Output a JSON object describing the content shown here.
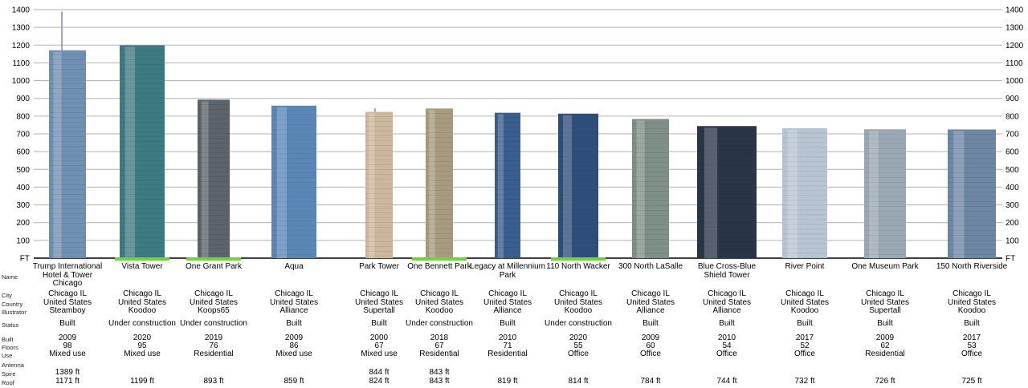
{
  "axis": {
    "ticks": [
      "1400",
      "1300",
      "1200",
      "1100",
      "1000",
      "900",
      "800",
      "700",
      "600",
      "500",
      "400",
      "300",
      "200",
      "100",
      "FT"
    ],
    "max_ft": 1400
  },
  "row_labels": {
    "name": "Name",
    "city": "City",
    "country": "Country",
    "illustrator": "Illustrator",
    "status": "Status",
    "built": "Built",
    "floors": "Floors",
    "use": "Use",
    "antenna": "Antenna",
    "spire": "Spire",
    "roof": "Roof"
  },
  "buildings": [
    {
      "name": "Trump International Hotel & Tower Chicago",
      "city": "Chicago IL",
      "country": "United States",
      "illustrator": "Steamboy",
      "status": "Built",
      "built": "2009",
      "floors": "98",
      "use": "Mixed use",
      "antenna": "",
      "spire": "1389 ft",
      "roof": "1171 ft",
      "height_ft": 1389,
      "color": "#6f8fb3"
    },
    {
      "name": "Vista Tower",
      "city": "Chicago IL",
      "country": "United States",
      "illustrator": "Koodoo",
      "status": "Under construction",
      "built": "2020",
      "floors": "95",
      "use": "Mixed use",
      "antenna": "",
      "spire": "",
      "roof": "1199 ft",
      "height_ft": 1199,
      "color": "#3e7a82"
    },
    {
      "name": "One Grant Park",
      "city": "Chicago IL",
      "country": "United States",
      "illustrator": "Koops65",
      "status": "Under construction",
      "built": "2019",
      "floors": "76",
      "use": "Residential",
      "antenna": "",
      "spire": "",
      "roof": "893 ft",
      "height_ft": 893,
      "color": "#5b6468"
    },
    {
      "name": "Aqua",
      "city": "Chicago IL",
      "country": "United States",
      "illustrator": "Alliance",
      "status": "Built",
      "built": "2009",
      "floors": "86",
      "use": "Mixed use",
      "antenna": "",
      "spire": "",
      "roof": "859 ft",
      "height_ft": 859,
      "color": "#5b87b6"
    },
    {
      "name": "Park Tower",
      "city": "Chicago IL",
      "country": "United States",
      "illustrator": "Supertall",
      "status": "Built",
      "built": "2000",
      "floors": "67",
      "use": "Mixed use",
      "antenna": "",
      "spire": "844 ft",
      "roof": "824 ft",
      "height_ft": 844,
      "color": "#cdb79a"
    },
    {
      "name": "One Bennett Park",
      "city": "Chicago IL",
      "country": "United States",
      "illustrator": "Koodoo",
      "status": "Under construction",
      "built": "2018",
      "floors": "67",
      "use": "Residential",
      "antenna": "",
      "spire": "843 ft",
      "roof": "843 ft",
      "height_ft": 843,
      "color": "#a89a7e"
    },
    {
      "name": "Legacy at Millennium Park",
      "city": "Chicago IL",
      "country": "United States",
      "illustrator": "Alliance",
      "status": "Built",
      "built": "2010",
      "floors": "71",
      "use": "Residential",
      "antenna": "",
      "spire": "",
      "roof": "819 ft",
      "height_ft": 819,
      "color": "#3a5f8c"
    },
    {
      "name": "110 North Wacker",
      "city": "Chicago IL",
      "country": "United States",
      "illustrator": "Koodoo",
      "status": "Under construction",
      "built": "2020",
      "floors": "55",
      "use": "Office",
      "antenna": "",
      "spire": "",
      "roof": "814 ft",
      "height_ft": 814,
      "color": "#2f4f7a"
    },
    {
      "name": "300 North LaSalle",
      "city": "Chicago IL",
      "country": "United States",
      "illustrator": "Alliance",
      "status": "Built",
      "built": "2009",
      "floors": "60",
      "use": "Office",
      "antenna": "",
      "spire": "",
      "roof": "784 ft",
      "height_ft": 784,
      "color": "#7f8f86"
    },
    {
      "name": "Blue Cross-Blue Shield Tower",
      "city": "Chicago IL",
      "country": "United States",
      "illustrator": "Alliance",
      "status": "Built",
      "built": "2010",
      "floors": "54",
      "use": "Office",
      "antenna": "",
      "spire": "",
      "roof": "744 ft",
      "height_ft": 744,
      "color": "#2b3548"
    },
    {
      "name": "River Point",
      "city": "Chicago IL",
      "country": "United States",
      "illustrator": "Koodoo",
      "status": "Built",
      "built": "2017",
      "floors": "52",
      "use": "Office",
      "antenna": "",
      "spire": "",
      "roof": "732 ft",
      "height_ft": 732,
      "color": "#b8c4d2"
    },
    {
      "name": "One Museum Park",
      "city": "Chicago IL",
      "country": "United States",
      "illustrator": "Supertall",
      "status": "Built",
      "built": "2009",
      "floors": "62",
      "use": "Residential",
      "antenna": "",
      "spire": "",
      "roof": "726 ft",
      "height_ft": 726,
      "color": "#9aa7b4"
    },
    {
      "name": "150 North Riverside",
      "city": "Chicago IL",
      "country": "United States",
      "illustrator": "Koodoo",
      "status": "Built",
      "built": "2017",
      "floors": "53",
      "use": "Office",
      "antenna": "",
      "spire": "",
      "roof": "725 ft",
      "height_ft": 725,
      "color": "#6d86a3"
    }
  ],
  "colors": {
    "grid": "#b0b0b0",
    "ground": "#6fd23f",
    "text": "#000000"
  }
}
